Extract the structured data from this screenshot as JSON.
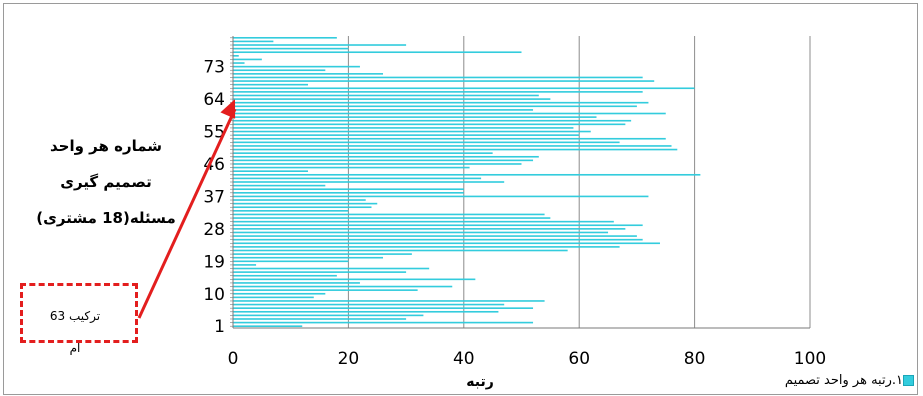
{
  "chart_data": {
    "type": "bar",
    "orientation": "horizontal",
    "xlabel": "رتبه",
    "ylabel_lines": [
      "شماره هر واحد",
      "تصمیم گیری",
      "مسئله(18 مشتری)"
    ],
    "xlim": [
      0,
      100
    ],
    "x_ticks": [
      "0",
      "20",
      "40",
      "60",
      "80",
      "100"
    ],
    "y_tick_labels": [
      "1",
      "10",
      "19",
      "28",
      "37",
      "46",
      "55",
      "64",
      "73"
    ],
    "y_tick_positions": [
      1,
      10,
      19,
      28,
      37,
      46,
      55,
      64,
      73
    ],
    "ylim": [
      0.5,
      81.5
    ],
    "grid": "vertical",
    "legend_position": "bottom-right",
    "legend_label": "رتبه هر واحد تصمیم",
    "legend_suffix": ".۱",
    "bar_color": "#33ccdd",
    "categories": [
      1,
      2,
      3,
      4,
      5,
      6,
      7,
      8,
      9,
      10,
      11,
      12,
      13,
      14,
      15,
      16,
      17,
      18,
      19,
      20,
      21,
      22,
      23,
      24,
      25,
      26,
      27,
      28,
      29,
      30,
      31,
      32,
      33,
      34,
      35,
      36,
      37,
      38,
      39,
      40,
      41,
      42,
      43,
      44,
      45,
      46,
      47,
      48,
      49,
      50,
      51,
      52,
      53,
      54,
      55,
      56,
      57,
      58,
      59,
      60,
      61,
      62,
      63,
      64,
      65,
      66,
      67,
      68,
      69,
      70,
      71,
      72,
      73,
      74,
      75,
      76,
      77,
      78,
      79,
      80,
      81
    ],
    "values": [
      12,
      52,
      30,
      33,
      46,
      52,
      47,
      54,
      14,
      16,
      32,
      38,
      22,
      42,
      18,
      30,
      34,
      4,
      20,
      26,
      31,
      58,
      67,
      74,
      71,
      70,
      65,
      68,
      71,
      66,
      55,
      54,
      20,
      24,
      25,
      23,
      72,
      40,
      40,
      16,
      47,
      43,
      81,
      13,
      41,
      50,
      52,
      53,
      45,
      77,
      76,
      67,
      75,
      60,
      62,
      59,
      68,
      69,
      63,
      75,
      52,
      70,
      72,
      55,
      53,
      71,
      80,
      13,
      73,
      71,
      26,
      16,
      22,
      2,
      5,
      1,
      50,
      20,
      30,
      7,
      18
    ]
  },
  "annotation": {
    "note_line1": "ترکیب 63",
    "note_line2": "ام",
    "arrow_target_category": 64,
    "arrow_color": "#e31e1e"
  }
}
